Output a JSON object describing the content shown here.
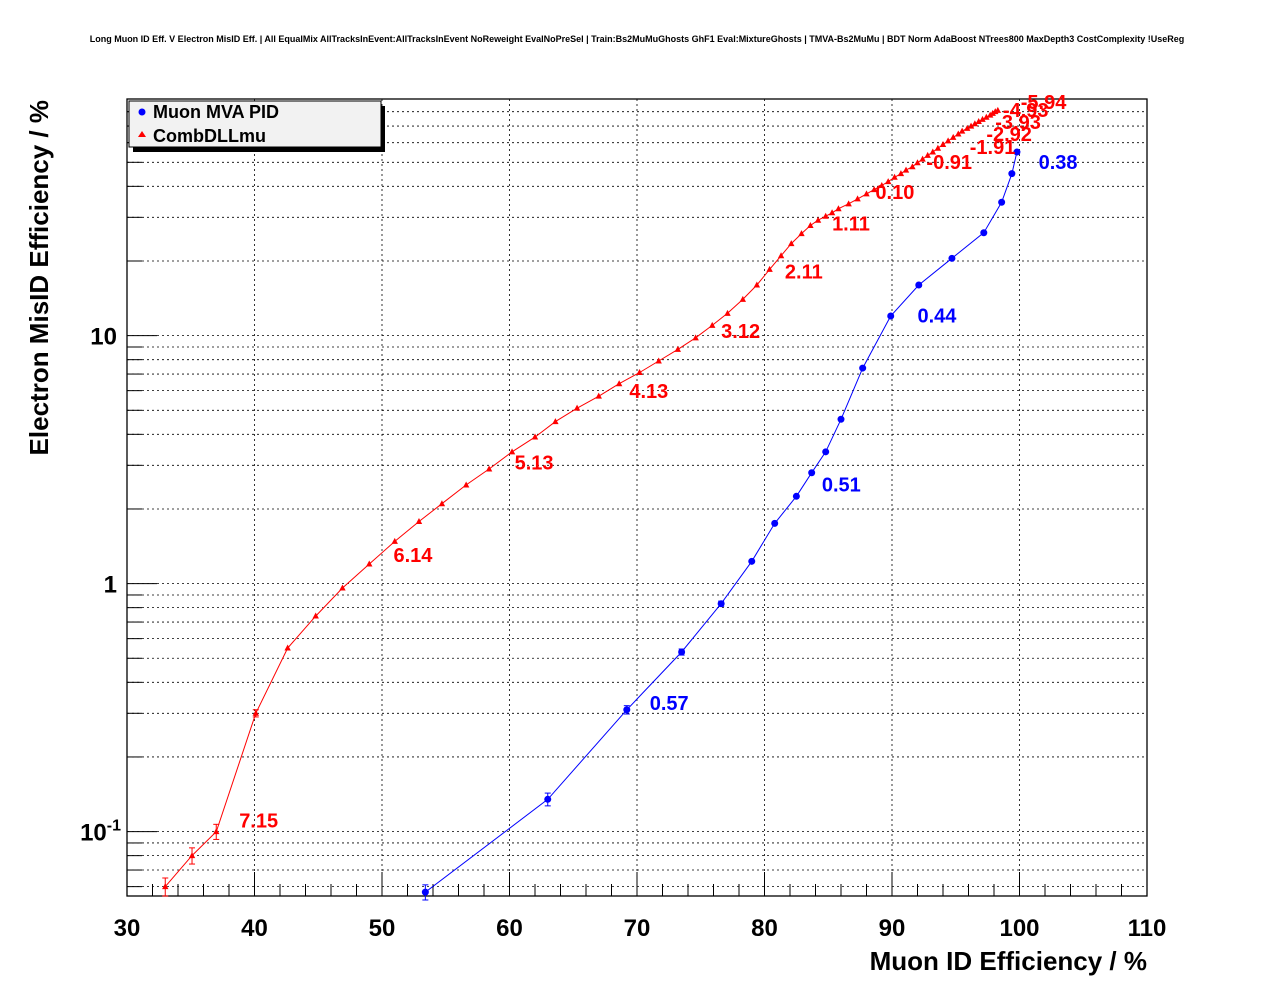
{
  "chart_data": {
    "type": "line",
    "title": "Long Muon ID Eff. V Electron MisID Eff. | All EqualMix AllTracksInEvent:AllTracksInEvent NoReweight EvalNoPreSel | Train:Bs2MuMuGhosts GhF1 Eval:MixtureGhosts | TMVA-Bs2MuMu | BDT Norm AdaBoost NTrees800 MaxDepth3 CostComplexity !UseReg",
    "xlabel": "Muon ID Efficiency / %",
    "ylabel": "Electron MisID Efficiency / %",
    "xlim": [
      30,
      110
    ],
    "ylim": [
      0.055,
      90
    ],
    "y_scale": "log",
    "grid": true,
    "legend_position": "top-left",
    "x_ticks": [
      "30",
      "40",
      "50",
      "60",
      "70",
      "80",
      "90",
      "100",
      "110"
    ],
    "y_ticks": [
      {
        "mantissa": "10",
        "exp": "-1",
        "value": 0.1
      },
      {
        "mantissa": "1",
        "exp": "",
        "value": 1
      },
      {
        "mantissa": "10",
        "exp": "",
        "value": 10
      }
    ],
    "series": [
      {
        "name": "Muon MVA PID",
        "color": "#0000ff",
        "marker": "circle",
        "x": [
          53.4,
          63.0,
          69.2,
          73.5,
          76.6,
          79.0,
          80.8,
          82.5,
          83.7,
          84.8,
          86.0,
          87.7,
          89.9,
          92.1,
          94.7,
          97.2,
          98.6,
          99.4,
          99.8
        ],
        "y": [
          0.057,
          0.135,
          0.31,
          0.53,
          0.83,
          1.23,
          1.75,
          2.25,
          2.8,
          3.4,
          4.6,
          7.4,
          12.0,
          16.0,
          20.5,
          26.0,
          34.5,
          45.0,
          55.0
        ],
        "yerr": [
          0.004,
          0.008,
          0.012,
          0.015,
          0.02,
          0.02,
          0.03,
          0.03,
          0.04,
          0.04,
          0.05,
          0.07,
          0.1,
          0.1,
          0.15,
          0.15,
          0.2,
          0.25,
          0.3
        ]
      },
      {
        "name": "CombDLLmu",
        "color": "#ff0000",
        "marker": "triangle",
        "x": [
          33.0,
          35.1,
          37.0,
          40.1,
          42.6,
          44.8,
          46.9,
          49.0,
          51.0,
          52.9,
          54.7,
          56.6,
          58.4,
          60.2,
          62.0,
          63.6,
          65.3,
          67.0,
          68.6,
          70.2,
          71.7,
          73.2,
          74.6,
          75.9,
          77.1,
          78.3,
          79.4,
          80.4,
          81.3,
          82.1,
          82.9,
          83.6,
          84.2,
          84.8,
          85.3,
          85.8,
          86.6,
          87.3,
          88.0,
          88.6,
          89.2,
          89.7,
          90.2,
          90.7,
          91.1,
          91.6,
          92.0,
          92.4,
          92.8,
          93.2,
          93.6,
          94.0,
          94.4,
          94.8,
          95.2,
          95.5,
          95.9,
          96.2,
          96.5,
          96.8,
          97.1,
          97.4,
          97.7,
          97.9,
          98.1,
          98.3
        ],
        "y": [
          0.06,
          0.08,
          0.1,
          0.3,
          0.55,
          0.74,
          0.96,
          1.2,
          1.48,
          1.78,
          2.1,
          2.5,
          2.9,
          3.4,
          3.9,
          4.5,
          5.1,
          5.7,
          6.4,
          7.1,
          7.9,
          8.8,
          9.8,
          11.0,
          12.3,
          14.0,
          16.0,
          18.5,
          21.0,
          23.5,
          25.8,
          27.8,
          29.2,
          30.3,
          31.3,
          32.5,
          34.0,
          35.6,
          37.3,
          38.8,
          40.3,
          41.8,
          43.5,
          45.0,
          46.5,
          48.0,
          49.8,
          51.5,
          53.3,
          55.0,
          57.0,
          59.0,
          61.0,
          63.0,
          65.0,
          66.8,
          68.5,
          70.0,
          71.5,
          73.0,
          74.5,
          76.0,
          77.5,
          78.8,
          80.0,
          81.0
        ],
        "yerr": [
          0.005,
          0.006,
          0.007,
          0.01,
          0.01,
          0.01,
          0.01,
          0.01,
          0.01,
          0.01,
          0.01,
          0.01,
          0.01,
          0.01,
          0.01,
          0.01,
          0.01,
          0.01,
          0.01,
          0.01,
          0.01,
          0.01,
          0.01,
          0.01,
          0.01,
          0.01,
          0.01,
          0.01,
          0.01,
          0.01,
          0.01,
          0.01,
          0.01,
          0.01,
          0.01,
          0.01,
          0.01,
          0.01,
          0.01,
          0.01,
          0.01,
          0.01,
          0.01,
          0.01,
          0.01,
          0.01,
          0.01,
          0.01,
          0.01,
          0.01,
          0.01,
          0.01,
          0.01,
          0.01,
          0.01,
          0.01,
          0.01,
          0.01,
          0.01,
          0.01,
          0.01,
          0.01,
          0.01,
          0.01,
          0.01,
          0.01
        ]
      }
    ],
    "annotations": [
      {
        "text": "0.57",
        "color": "#0000ff",
        "x": 71.0,
        "y": 0.31
      },
      {
        "text": "0.51",
        "color": "#0000ff",
        "x": 84.5,
        "y": 2.35
      },
      {
        "text": "0.44",
        "color": "#0000ff",
        "x": 92.0,
        "y": 11.3
      },
      {
        "text": "0.38",
        "color": "#0000ff",
        "x": 101.5,
        "y": 47.0
      },
      {
        "text": "7.15",
        "color": "#ff0000",
        "x": 38.8,
        "y": 0.104
      },
      {
        "text": "6.14",
        "color": "#ff0000",
        "x": 50.9,
        "y": 1.22
      },
      {
        "text": "5.13",
        "color": "#ff0000",
        "x": 60.4,
        "y": 2.88
      },
      {
        "text": "4.13",
        "color": "#ff0000",
        "x": 69.4,
        "y": 5.6
      },
      {
        "text": "3.12",
        "color": "#ff0000",
        "x": 76.6,
        "y": 9.8
      },
      {
        "text": "2.11",
        "color": "#ff0000",
        "x": 81.6,
        "y": 17.0
      },
      {
        "text": "1.11",
        "color": "#ff0000",
        "x": 85.3,
        "y": 26.5
      },
      {
        "text": "0.10",
        "color": "#ff0000",
        "x": 88.7,
        "y": 35.5
      },
      {
        "text": "-0.91",
        "color": "#ff0000",
        "x": 92.7,
        "y": 47.0
      },
      {
        "text": "-1.91",
        "color": "#ff0000",
        "x": 96.1,
        "y": 54.0
      },
      {
        "text": "-2.92",
        "color": "#ff0000",
        "x": 97.4,
        "y": 61.0
      },
      {
        "text": "-3.93",
        "color": "#ff0000",
        "x": 98.1,
        "y": 68.0
      },
      {
        "text": "-4.93",
        "color": "#ff0000",
        "x": 98.7,
        "y": 76.0
      },
      {
        "text": "-5.94",
        "color": "#ff0000",
        "x": 100.1,
        "y": 82.0
      }
    ]
  }
}
